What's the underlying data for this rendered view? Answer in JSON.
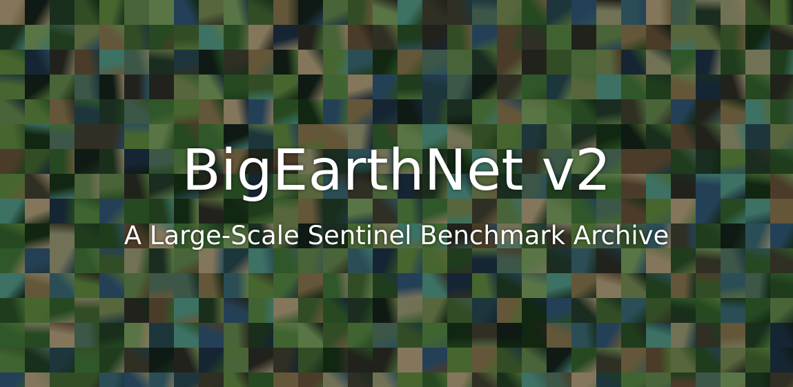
{
  "hero": {
    "title": "BigEarthNet v2",
    "subtitle": "A Large-Scale Sentinel Benchmark Archive",
    "mosaic_palette": [
      "#2f5a2a",
      "#3b6b32",
      "#264a24",
      "#4d7a3c",
      "#1f3a22",
      "#5a7a45",
      "#6b7d4a",
      "#7a6a45",
      "#5c4a32",
      "#3a3a2c",
      "#24424a",
      "#2d4f6b",
      "#1b2e3f",
      "#35606a",
      "#4a8a7a",
      "#8a8a6a",
      "#a09070",
      "#2a2a24",
      "#163016",
      "#577d3a",
      "#3e5e2e",
      "#6d8f55",
      "#203828",
      "#4a6a58",
      "#122018"
    ]
  }
}
